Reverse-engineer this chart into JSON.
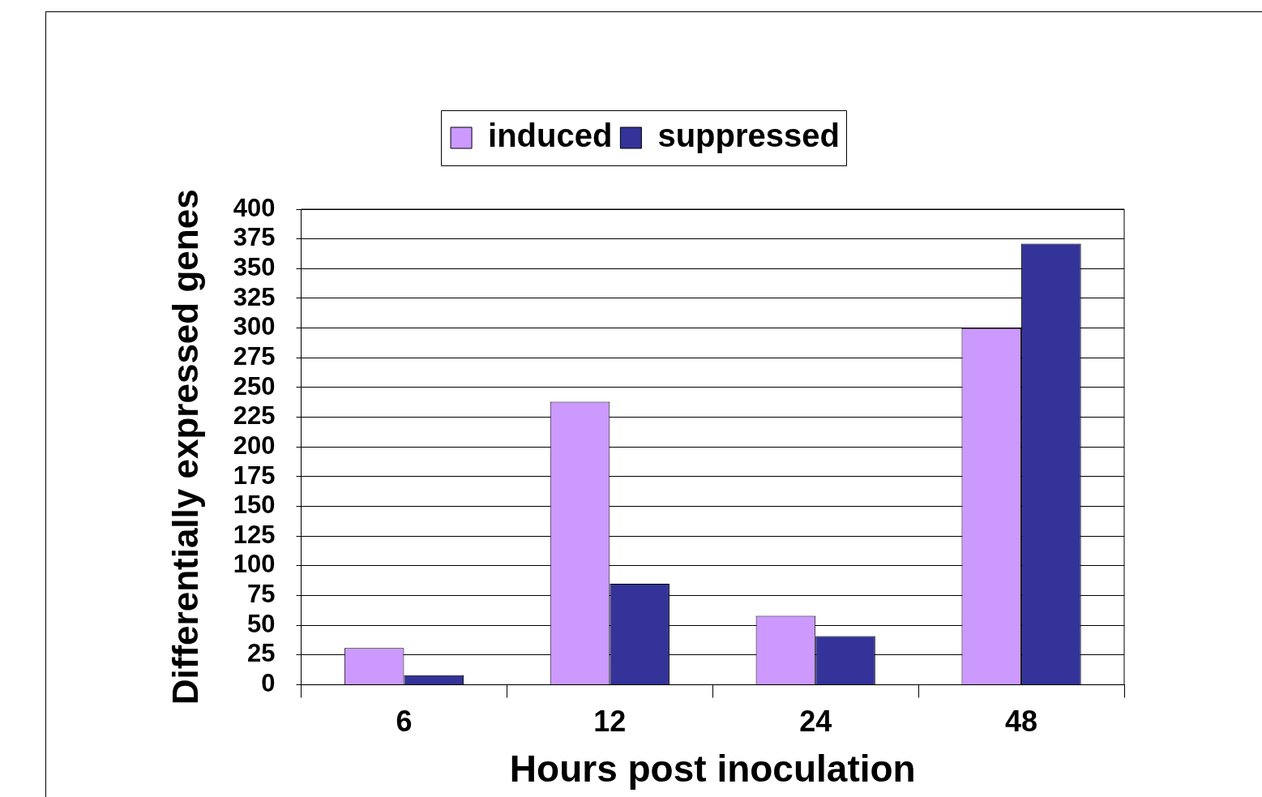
{
  "chart_data": {
    "type": "bar",
    "categories": [
      "6",
      "12",
      "24",
      "48"
    ],
    "series": [
      {
        "name": "induced",
        "color": "#cc99ff",
        "values": [
          31,
          238,
          58,
          300
        ]
      },
      {
        "name": "suppressed",
        "color": "#333399",
        "values": [
          8,
          85,
          41,
          371
        ]
      }
    ],
    "xlabel": "Hours post inoculation",
    "ylabel": "Differentially expressed genes",
    "ylim": [
      0,
      400
    ],
    "yticks": [
      0,
      25,
      50,
      75,
      100,
      125,
      150,
      175,
      200,
      225,
      250,
      275,
      300,
      325,
      350,
      375,
      400
    ],
    "grid": "y",
    "legend": "top"
  }
}
